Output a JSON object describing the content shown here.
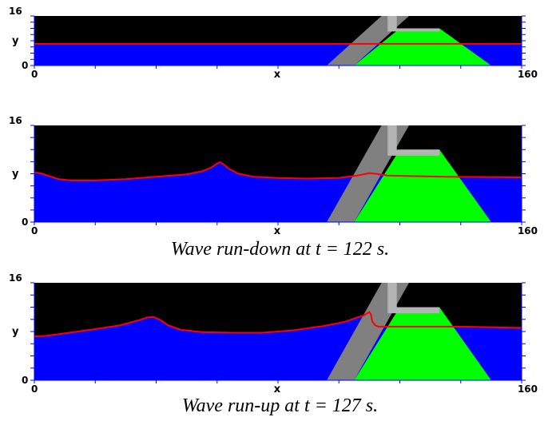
{
  "colors": {
    "background": "#000000",
    "water": "#0000ff",
    "surface": "#ff0000",
    "armour": "#808080",
    "core": "#00ff00",
    "crown": "#b4b4b4",
    "axis": "#0000ff",
    "label": "#000000"
  },
  "axes": {
    "xlabel": "x",
    "ylabel": "y",
    "xmin_label": "0",
    "xmax_label": "160",
    "ymin_label": "0",
    "ymax_label": "16"
  },
  "panels": [
    {
      "caption": "",
      "y_max": 16,
      "water_surface": [
        [
          0,
          7
        ],
        [
          160,
          7
        ]
      ]
    },
    {
      "caption": "Wave run-down at t = 122 s.",
      "y_max": 16,
      "water_surface": [
        [
          0,
          8.2
        ],
        [
          2,
          8.1
        ],
        [
          5,
          7.6
        ],
        [
          8,
          7.1
        ],
        [
          12,
          6.9
        ],
        [
          20,
          6.9
        ],
        [
          30,
          7.1
        ],
        [
          40,
          7.5
        ],
        [
          50,
          7.9
        ],
        [
          55,
          8.4
        ],
        [
          58,
          9.0
        ],
        [
          60,
          9.7
        ],
        [
          61,
          9.9
        ],
        [
          62,
          9.6
        ],
        [
          64,
          8.8
        ],
        [
          67,
          8.0
        ],
        [
          72,
          7.5
        ],
        [
          80,
          7.3
        ],
        [
          90,
          7.2
        ],
        [
          100,
          7.3
        ],
        [
          106,
          7.7
        ],
        [
          110,
          8.1
        ],
        [
          112,
          8.0
        ],
        [
          116,
          7.7
        ],
        [
          125,
          7.6
        ],
        [
          135,
          7.5
        ],
        [
          160,
          7.4
        ]
      ]
    },
    {
      "caption": "Wave run-up at t = 127 s.",
      "y_max": 16,
      "water_surface": [
        [
          0,
          7.2
        ],
        [
          4,
          7.3
        ],
        [
          10,
          7.7
        ],
        [
          20,
          8.4
        ],
        [
          28,
          9.0
        ],
        [
          34,
          9.8
        ],
        [
          37,
          10.3
        ],
        [
          39,
          10.4
        ],
        [
          41,
          10.0
        ],
        [
          44,
          9.0
        ],
        [
          48,
          8.3
        ],
        [
          55,
          7.9
        ],
        [
          65,
          7.8
        ],
        [
          75,
          7.8
        ],
        [
          85,
          8.2
        ],
        [
          95,
          8.9
        ],
        [
          102,
          9.6
        ],
        [
          106,
          10.3
        ],
        [
          108,
          10.6
        ],
        [
          110,
          11.2
        ],
        [
          110.5,
          10.8
        ],
        [
          111,
          9.6
        ],
        [
          112,
          9.0
        ],
        [
          113,
          8.8
        ],
        [
          125,
          8.8
        ],
        [
          140,
          8.8
        ],
        [
          160,
          8.6
        ]
      ]
    }
  ]
}
